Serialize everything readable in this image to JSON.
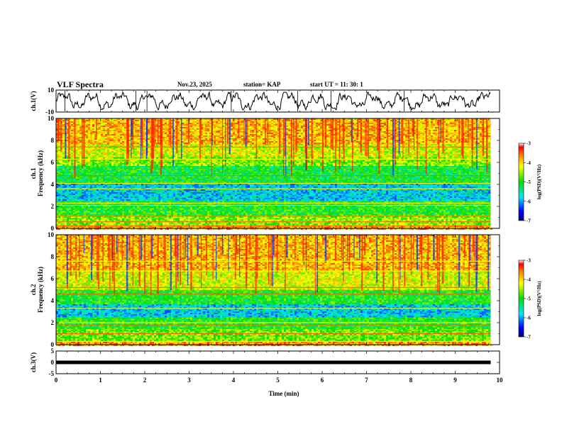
{
  "header": {
    "title": "VLF Spectra",
    "date": "Nov.23, 2025",
    "station": "station= KAP",
    "start_time": "start  UT  =   11: 30: 1"
  },
  "chart_data": [
    {
      "type": "line",
      "name": "ch1-waveform",
      "ylabel": "ch.1(V)",
      "ylim": [
        -10,
        10
      ],
      "ytick_labels": [
        "10",
        "-10"
      ],
      "x_range_min": [
        0,
        9.8
      ],
      "description_values": "noisy waveform oscillating around ~0 V, amplitude about ±5 V"
    },
    {
      "type": "heatmap",
      "name": "ch1-spectrogram",
      "ylabel_lines": [
        "ch.1",
        "Frequency (kHz)"
      ],
      "ylim_khz": [
        0,
        10
      ],
      "ytick_labels": [
        "0",
        "2",
        "4",
        "6",
        "8",
        "10"
      ],
      "colorbar": {
        "label": "log(PSD)(V²/Hz)",
        "range": [
          -7,
          -3
        ],
        "tick_labels": [
          "-3",
          "-4",
          "-5",
          "-6",
          "-7"
        ]
      },
      "bands_khz": [
        {
          "from": 0,
          "to": 0.4,
          "level": -3.8
        },
        {
          "from": 0.4,
          "to": 1.2,
          "level": -4.6
        },
        {
          "from": 1.2,
          "to": 2.6,
          "level": -5.0
        },
        {
          "from": 2.6,
          "to": 4.2,
          "level": -5.8
        },
        {
          "from": 4.2,
          "to": 5.8,
          "level": -5.1
        },
        {
          "from": 5.8,
          "to": 6.6,
          "level": -4.6
        },
        {
          "from": 6.6,
          "to": 7.8,
          "level": -4.3
        },
        {
          "from": 7.8,
          "to": 10,
          "level": -3.9
        }
      ],
      "tones_khz": [
        0.2,
        0.6,
        1.1,
        2.1,
        2.3,
        3.6,
        4.1,
        4.8,
        6.3,
        7.4
      ]
    },
    {
      "type": "heatmap",
      "name": "ch2-spectrogram",
      "ylabel_lines": [
        "ch.2",
        "Frequency (kHz)"
      ],
      "ylim_khz": [
        0,
        10
      ],
      "ytick_labels": [
        "0",
        "2",
        "4",
        "6",
        "8",
        "10"
      ],
      "colorbar": {
        "label": "log(PSD)(V²/Hz)",
        "range": [
          -7,
          -3
        ],
        "tick_labels": [
          "-3",
          "-4",
          "-5",
          "-6",
          "-7"
        ]
      },
      "bands_khz": [
        {
          "from": 0,
          "to": 0.4,
          "level": -3.8
        },
        {
          "from": 0.4,
          "to": 1.5,
          "level": -4.7
        },
        {
          "from": 1.5,
          "to": 2.6,
          "level": -5.0
        },
        {
          "from": 2.6,
          "to": 3.8,
          "level": -5.8
        },
        {
          "from": 3.8,
          "to": 5.0,
          "level": -5.0
        },
        {
          "from": 5.0,
          "to": 6.8,
          "level": -4.3
        },
        {
          "from": 6.8,
          "to": 10,
          "level": -3.9
        }
      ],
      "tones_khz": [
        0.3,
        1.0,
        1.8,
        2.0,
        3.3,
        4.6,
        5.2,
        6.7,
        7.6
      ]
    },
    {
      "type": "line",
      "name": "ch3-signal",
      "ylabel": "ch.3(V)",
      "ylim": [
        -5,
        5
      ],
      "ytick_labels": [
        "5",
        "0",
        "-5"
      ],
      "constant_value": 0
    }
  ],
  "xaxis": {
    "label": "Time  (min)",
    "range": [
      0,
      10
    ],
    "data_end": 9.8,
    "tick_labels": [
      "0",
      "1",
      "2",
      "3",
      "4",
      "5",
      "6",
      "7",
      "8",
      "9",
      "10"
    ]
  }
}
